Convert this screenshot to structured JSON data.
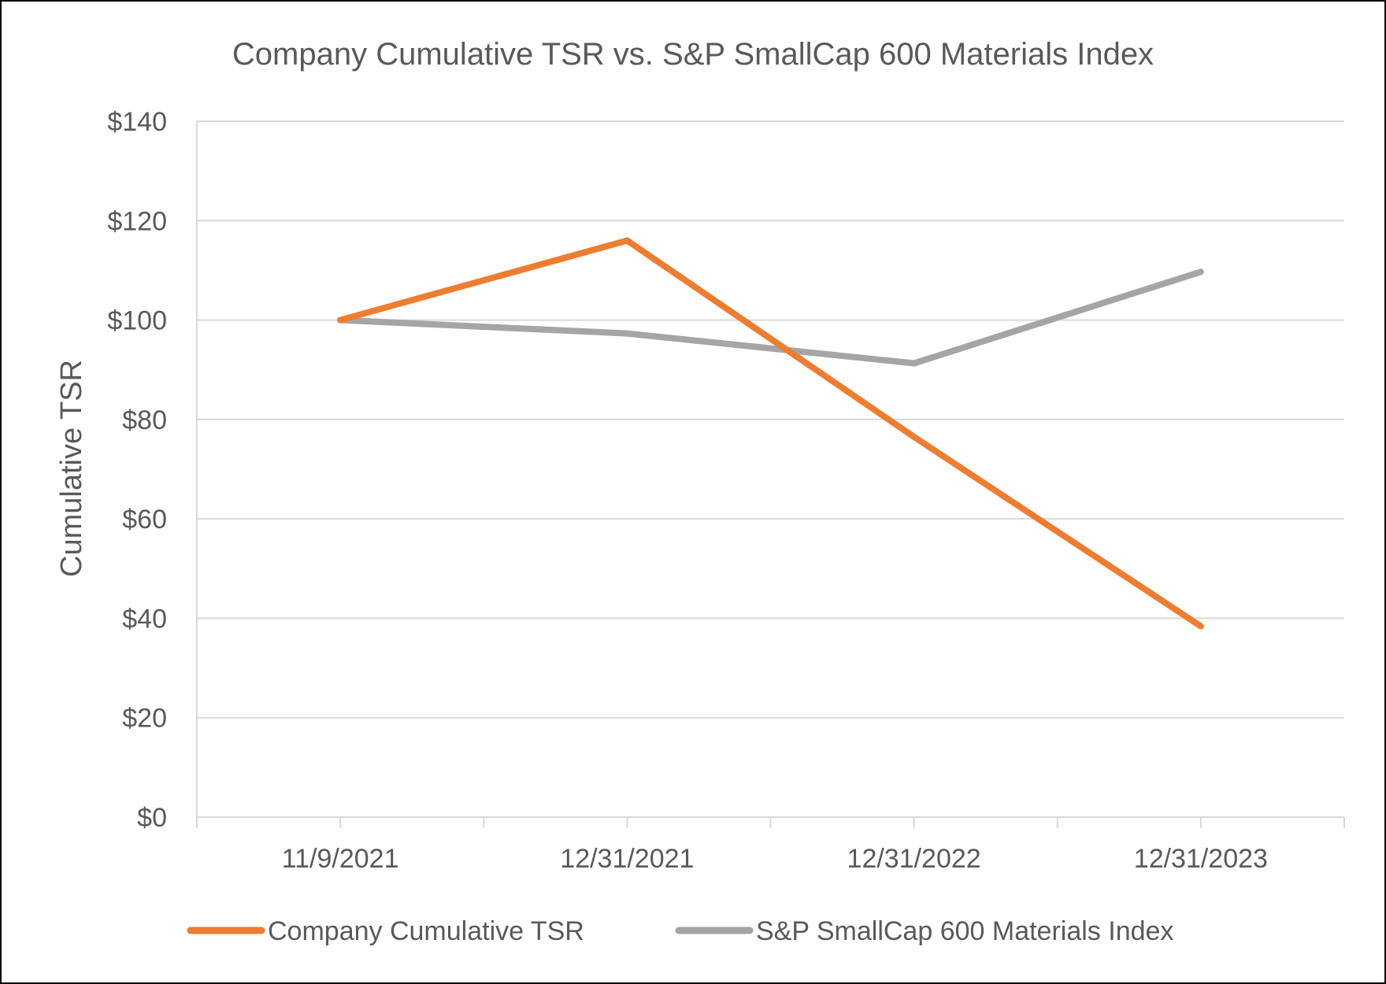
{
  "chart_data": {
    "type": "line",
    "title": "Company Cumulative TSR vs. S&P SmallCap 600 Materials Index",
    "xlabel": "",
    "ylabel": "Cumulative  TSR",
    "categories": [
      "11/9/2021",
      "12/31/2021",
      "12/31/2022",
      "12/31/2023"
    ],
    "ylim": [
      0,
      140
    ],
    "yticks": [
      0,
      20,
      40,
      60,
      80,
      100,
      120,
      140
    ],
    "ytick_labels": [
      "$0",
      "$20",
      "$40",
      "$60",
      "$80",
      "$100",
      "$120",
      "$140"
    ],
    "grid": true,
    "legend_position": "bottom",
    "series": [
      {
        "name": "Company Cumulative TSR",
        "color": "#ED7D31",
        "values": [
          100,
          116,
          76.5,
          38.4
        ]
      },
      {
        "name": "S&P SmallCap 600 Materials Index",
        "color": "#A5A5A5",
        "values": [
          100,
          97.3,
          91.3,
          109.7
        ]
      }
    ]
  }
}
